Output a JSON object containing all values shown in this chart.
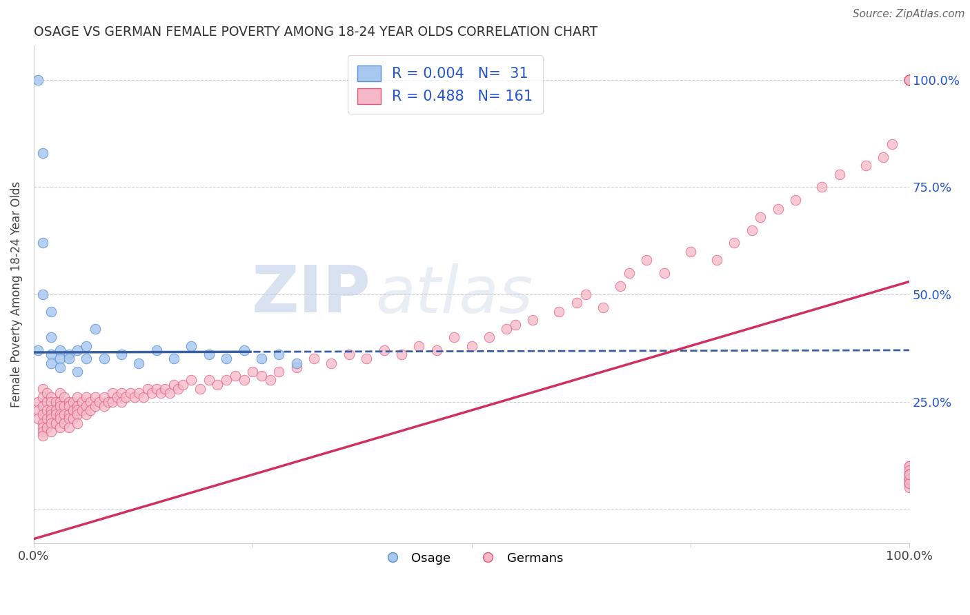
{
  "title": "OSAGE VS GERMAN FEMALE POVERTY AMONG 18-24 YEAR OLDS CORRELATION CHART",
  "source": "Source: ZipAtlas.com",
  "ylabel": "Female Poverty Among 18-24 Year Olds",
  "xlim": [
    0,
    1
  ],
  "ylim": [
    -0.08,
    1.08
  ],
  "ytick_positions": [
    0.0,
    0.25,
    0.5,
    0.75,
    1.0
  ],
  "right_yticklabels": [
    "",
    "25.0%",
    "50.0%",
    "75.0%",
    "100.0%"
  ],
  "watermark_zip": "ZIP",
  "watermark_atlas": "atlas",
  "osage_R": 0.004,
  "osage_N": 31,
  "german_R": 0.488,
  "german_N": 161,
  "osage_color": "#A8C8F0",
  "osage_edge_color": "#5B8FD0",
  "german_color": "#F5B8C8",
  "german_edge_color": "#E05878",
  "osage_line_color": "#3A5FA0",
  "german_line_color": "#D03060",
  "background_color": "#FFFFFF",
  "grid_color": "#C8C8C8",
  "legend_text_color": "#2255CC",
  "title_color": "#333333",
  "source_color": "#666666",
  "osage_x": [
    0.005,
    0.005,
    0.01,
    0.01,
    0.01,
    0.02,
    0.02,
    0.02,
    0.02,
    0.03,
    0.03,
    0.03,
    0.04,
    0.04,
    0.05,
    0.05,
    0.06,
    0.06,
    0.07,
    0.08,
    0.1,
    0.12,
    0.14,
    0.16,
    0.18,
    0.2,
    0.22,
    0.24,
    0.26,
    0.28,
    0.3
  ],
  "osage_y": [
    1.0,
    0.37,
    0.83,
    0.62,
    0.5,
    0.46,
    0.4,
    0.36,
    0.34,
    0.37,
    0.35,
    0.33,
    0.36,
    0.35,
    0.37,
    0.32,
    0.38,
    0.35,
    0.42,
    0.35,
    0.36,
    0.34,
    0.37,
    0.35,
    0.38,
    0.36,
    0.35,
    0.37,
    0.35,
    0.36,
    0.34
  ],
  "german_x": [
    0.005,
    0.005,
    0.005,
    0.01,
    0.01,
    0.01,
    0.01,
    0.01,
    0.01,
    0.01,
    0.01,
    0.015,
    0.015,
    0.015,
    0.015,
    0.015,
    0.02,
    0.02,
    0.02,
    0.02,
    0.02,
    0.02,
    0.02,
    0.025,
    0.025,
    0.025,
    0.025,
    0.03,
    0.03,
    0.03,
    0.03,
    0.03,
    0.03,
    0.035,
    0.035,
    0.035,
    0.035,
    0.04,
    0.04,
    0.04,
    0.04,
    0.04,
    0.045,
    0.045,
    0.045,
    0.05,
    0.05,
    0.05,
    0.05,
    0.05,
    0.055,
    0.055,
    0.06,
    0.06,
    0.06,
    0.065,
    0.065,
    0.07,
    0.07,
    0.075,
    0.08,
    0.08,
    0.085,
    0.09,
    0.09,
    0.095,
    0.1,
    0.1,
    0.105,
    0.11,
    0.115,
    0.12,
    0.125,
    0.13,
    0.135,
    0.14,
    0.145,
    0.15,
    0.155,
    0.16,
    0.165,
    0.17,
    0.18,
    0.19,
    0.2,
    0.21,
    0.22,
    0.23,
    0.24,
    0.25,
    0.26,
    0.27,
    0.28,
    0.3,
    0.32,
    0.34,
    0.36,
    0.38,
    0.4,
    0.42,
    0.44,
    0.46,
    0.48,
    0.5,
    0.52,
    0.54,
    0.55,
    0.57,
    0.6,
    0.62,
    0.63,
    0.65,
    0.67,
    0.68,
    0.7,
    0.72,
    0.75,
    0.78,
    0.8,
    0.82,
    0.83,
    0.85,
    0.87,
    0.9,
    0.92,
    0.95,
    0.97,
    0.98,
    1.0,
    1.0,
    1.0,
    1.0,
    1.0,
    1.0,
    1.0,
    1.0,
    1.0,
    1.0,
    1.0,
    1.0,
    1.0,
    1.0,
    1.0,
    1.0,
    1.0,
    1.0,
    1.0,
    1.0,
    1.0,
    1.0,
    1.0,
    1.0,
    1.0,
    1.0,
    1.0,
    1.0,
    1.0,
    1.0,
    1.0,
    1.0,
    1.0
  ],
  "german_y": [
    0.25,
    0.23,
    0.21,
    0.28,
    0.26,
    0.24,
    0.22,
    0.2,
    0.19,
    0.18,
    0.17,
    0.27,
    0.25,
    0.23,
    0.21,
    0.19,
    0.26,
    0.25,
    0.23,
    0.22,
    0.21,
    0.2,
    0.18,
    0.25,
    0.23,
    0.22,
    0.2,
    0.27,
    0.25,
    0.24,
    0.22,
    0.21,
    0.19,
    0.26,
    0.24,
    0.22,
    0.2,
    0.25,
    0.24,
    0.22,
    0.21,
    0.19,
    0.25,
    0.23,
    0.21,
    0.26,
    0.24,
    0.23,
    0.22,
    0.2,
    0.25,
    0.23,
    0.26,
    0.24,
    0.22,
    0.25,
    0.23,
    0.26,
    0.24,
    0.25,
    0.26,
    0.24,
    0.25,
    0.27,
    0.25,
    0.26,
    0.27,
    0.25,
    0.26,
    0.27,
    0.26,
    0.27,
    0.26,
    0.28,
    0.27,
    0.28,
    0.27,
    0.28,
    0.27,
    0.29,
    0.28,
    0.29,
    0.3,
    0.28,
    0.3,
    0.29,
    0.3,
    0.31,
    0.3,
    0.32,
    0.31,
    0.3,
    0.32,
    0.33,
    0.35,
    0.34,
    0.36,
    0.35,
    0.37,
    0.36,
    0.38,
    0.37,
    0.4,
    0.38,
    0.4,
    0.42,
    0.43,
    0.44,
    0.46,
    0.48,
    0.5,
    0.47,
    0.52,
    0.55,
    0.58,
    0.55,
    0.6,
    0.58,
    0.62,
    0.65,
    0.68,
    0.7,
    0.72,
    0.75,
    0.78,
    0.8,
    0.82,
    0.85,
    1.0,
    1.0,
    1.0,
    1.0,
    1.0,
    1.0,
    1.0,
    1.0,
    1.0,
    1.0,
    1.0,
    1.0,
    1.0,
    1.0,
    1.0,
    1.0,
    1.0,
    1.0,
    0.1,
    0.1,
    0.09,
    0.08,
    0.07,
    0.06,
    0.08,
    0.07,
    0.06,
    0.07,
    0.06,
    0.05,
    0.07,
    0.06,
    0.08
  ]
}
